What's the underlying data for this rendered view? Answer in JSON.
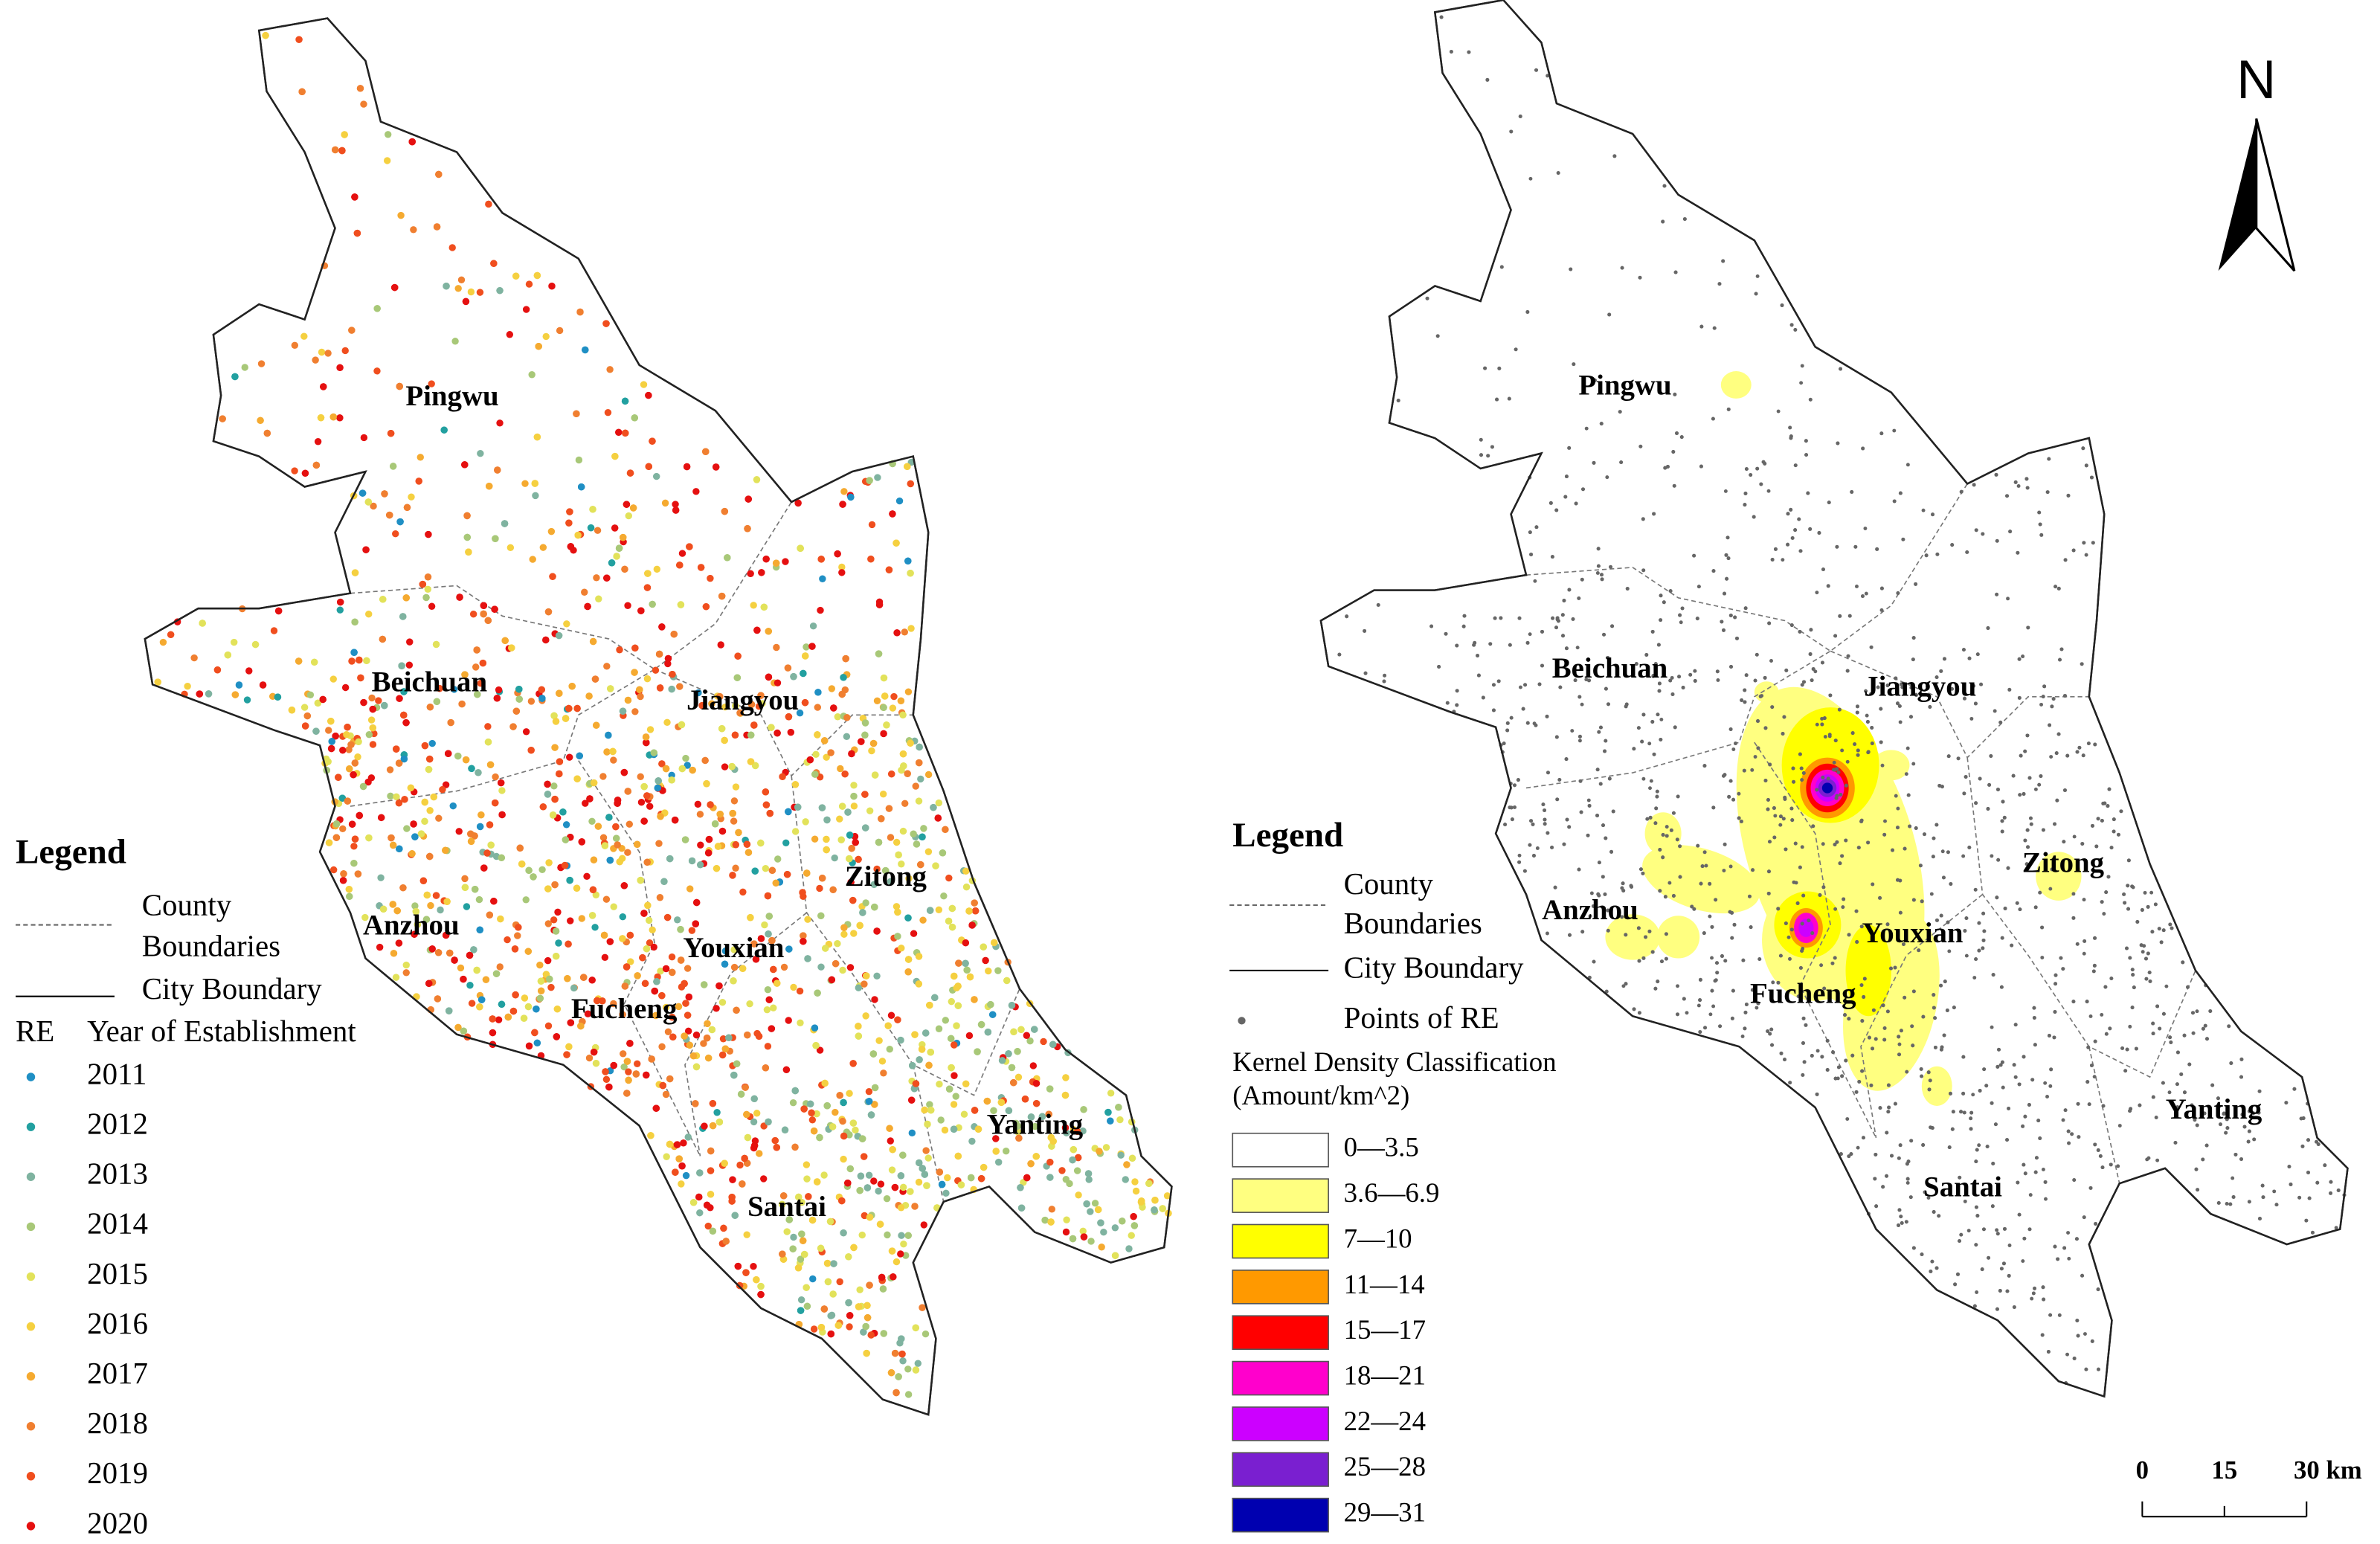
{
  "left_map": {
    "county_labels": [
      "Pingwu",
      "Beichuan",
      "Jiangyou",
      "Zitong",
      "Anzhou",
      "Youxian",
      "Fucheng",
      "Yanting",
      "Santai"
    ],
    "legend": {
      "title": "Legend",
      "county_boundaries": [
        "County",
        "Boundaries"
      ],
      "city_boundary": "City Boundary",
      "re_label": "RE",
      "year_title": "Year of Establishment",
      "years": [
        {
          "label": "2011",
          "color": "#1f8fc4"
        },
        {
          "label": "2012",
          "color": "#22a0a0"
        },
        {
          "label": "2013",
          "color": "#7fb3a0"
        },
        {
          "label": "2014",
          "color": "#a8c878"
        },
        {
          "label": "2015",
          "color": "#e2e25a"
        },
        {
          "label": "2016",
          "color": "#f5d040"
        },
        {
          "label": "2017",
          "color": "#f5aa30"
        },
        {
          "label": "2018",
          "color": "#f07f30"
        },
        {
          "label": "2019",
          "color": "#f04e1e"
        },
        {
          "label": "2020",
          "color": "#e51010"
        }
      ]
    }
  },
  "right_map": {
    "county_labels": [
      "Pingwu",
      "Beichuan",
      "Jiangyou",
      "Zitong",
      "Anzhou",
      "Youxian",
      "Fucheng",
      "Yanting",
      "Santai"
    ],
    "legend": {
      "title": "Legend",
      "county_boundaries": [
        "County",
        "Boundaries"
      ],
      "city_boundary": "City Boundary",
      "points": "Points of RE",
      "kernel_title": "Kernel Density Classification",
      "kernel_unit": "(Amount/km^2)",
      "classes": [
        {
          "label": "0—3.5",
          "color": "#ffffff"
        },
        {
          "label": "3.6—6.9",
          "color": "#ffff80"
        },
        {
          "label": "7—10",
          "color": "#ffff00"
        },
        {
          "label": "11—14",
          "color": "#ff9900"
        },
        {
          "label": "15—17",
          "color": "#ff0000"
        },
        {
          "label": "18—21",
          "color": "#ff00cc"
        },
        {
          "label": "22—24",
          "color": "#cc00ff"
        },
        {
          "label": "25—28",
          "color": "#7a1fd0"
        },
        {
          "label": "29—31",
          "color": "#0000b0"
        }
      ]
    },
    "north": "N",
    "scale_labels": [
      "0",
      "15",
      "30 km"
    ]
  }
}
